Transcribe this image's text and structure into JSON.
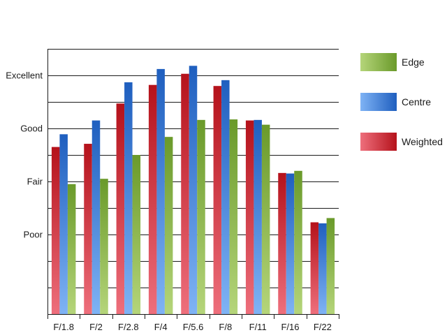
{
  "chart_data": {
    "type": "bar",
    "categories": [
      "F/1.8",
      "F/2",
      "F/2.8",
      "F/4",
      "F/5.6",
      "F/8",
      "F/11",
      "F/16",
      "F/22"
    ],
    "series": [
      {
        "name": "Weighted",
        "values": [
          2.65,
          2.71,
          3.47,
          3.82,
          4.03,
          3.8,
          3.15,
          2.16,
          1.23
        ],
        "color_top": "#b5121b",
        "color_bottom": "#ee6f7c"
      },
      {
        "name": "Centre",
        "values": [
          2.89,
          3.15,
          3.87,
          4.12,
          4.18,
          3.91,
          3.16,
          2.15,
          1.21
        ],
        "color_top": "#1f5fbf",
        "color_bottom": "#7fb3f5"
      },
      {
        "name": "Edge",
        "values": [
          1.95,
          2.05,
          2.5,
          2.84,
          3.16,
          3.17,
          3.07,
          2.2,
          1.31
        ],
        "color_top": "#6a9a2a",
        "color_bottom": "#b5d57a"
      }
    ],
    "y_tick_labels": [
      {
        "label": "Poor",
        "value": 1
      },
      {
        "label": "Fair",
        "value": 2
      },
      {
        "label": "Good",
        "value": 3
      },
      {
        "label": "Excellent",
        "value": 4
      }
    ],
    "ylim": [
      -0.5,
      4.5
    ],
    "grid": true,
    "legend_position": "right",
    "legend_order": [
      "Edge",
      "Centre",
      "Weighted"
    ]
  }
}
